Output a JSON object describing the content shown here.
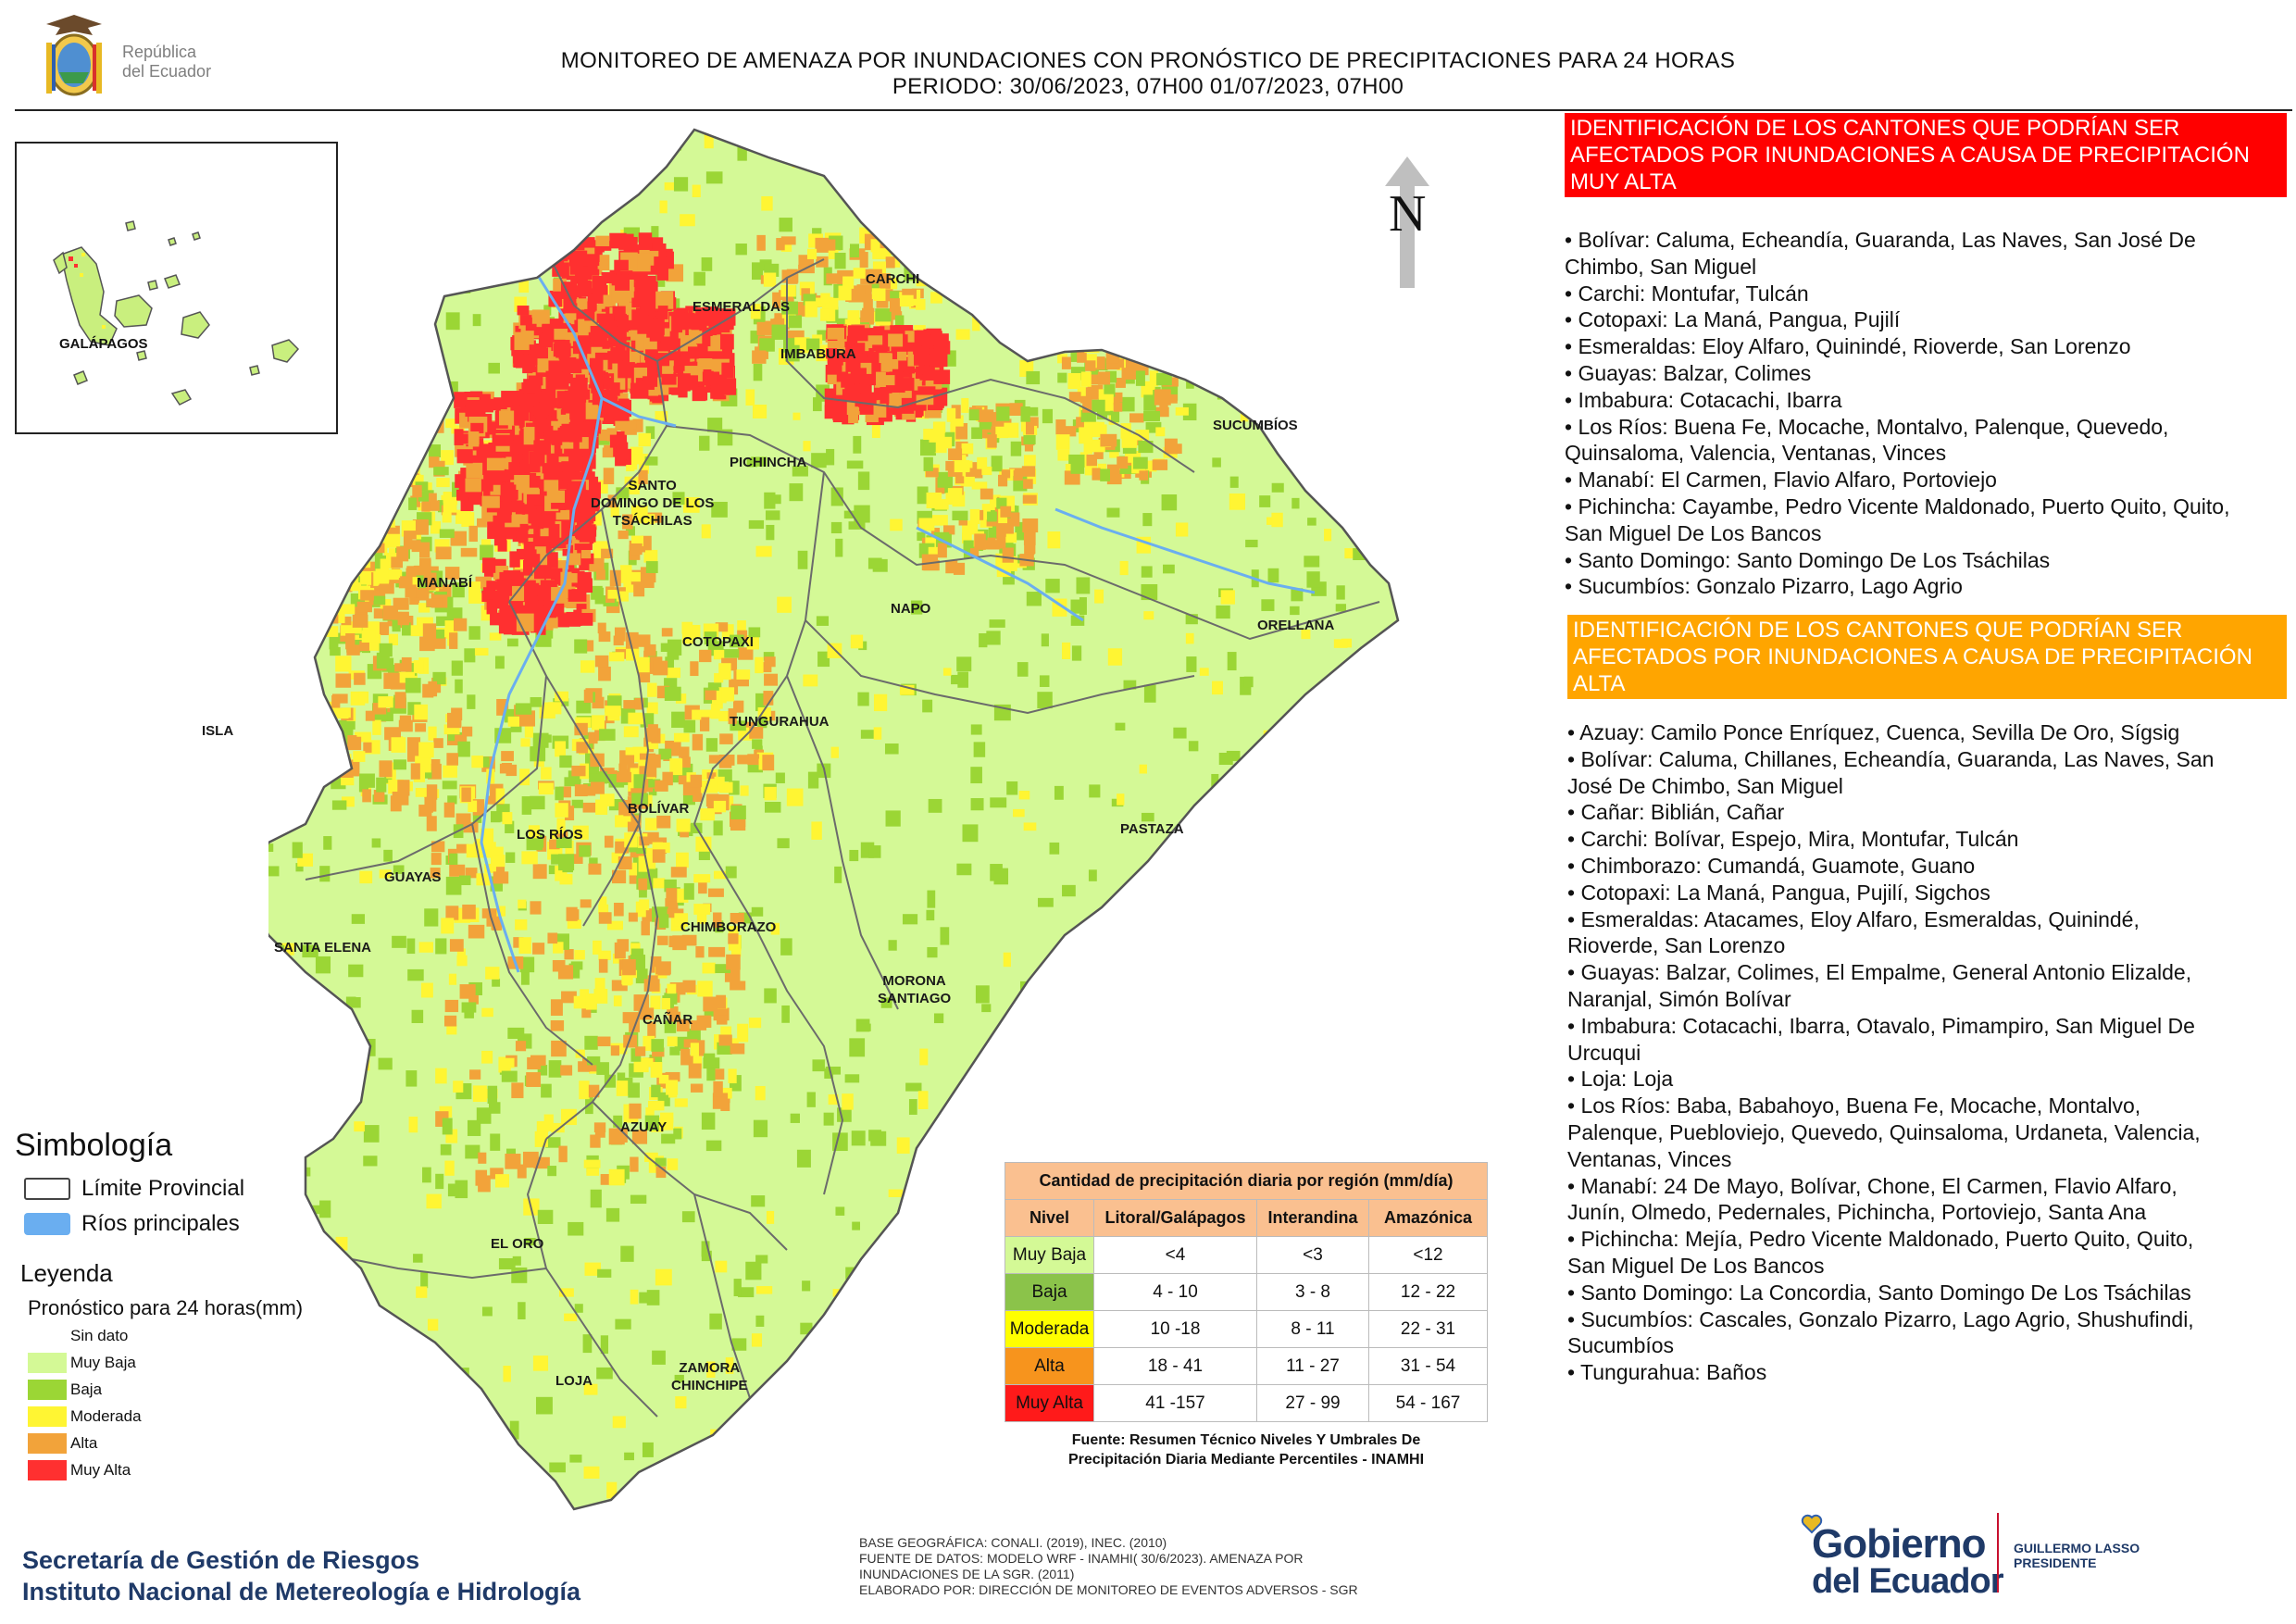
{
  "header": {
    "logo_text": [
      "República",
      "del Ecuador"
    ],
    "title_line1": "MONITOREO DE AMENAZA POR INUNDACIONES  CON PRONÓSTICO DE  PRECIPITACIONES PARA 24 HORAS",
    "title_line2": "PERIODO: 30/06/2023, 07H00 01/07/2023, 07H00"
  },
  "inset": {
    "label": "GALÁPAGOS"
  },
  "north_label": "N",
  "provinces": {
    "esmeraldas": "ESMERALDAS",
    "carchi": "CARCHI",
    "imbabura": "IMBABURA",
    "sucumbios": "SUCUMBÍOS",
    "pichincha": "PICHINCHA",
    "santo_domingo": [
      "SANTO",
      "DOMINGO DE LOS",
      "TSÁCHILAS"
    ],
    "manabi": "MANABÍ",
    "napo": "NAPO",
    "orellana": "ORELLANA",
    "cotopaxi": "COTOPAXI",
    "isla": "ISLA",
    "tungurahua": "TUNGURAHUA",
    "bolivar": "BOLÍVAR",
    "los_rios": "LOS RÍOS",
    "pastaza": "PASTAZA",
    "guayas": "GUAYAS",
    "chimborazo": "CHIMBORAZO",
    "santa_elena": "SANTA ELENA",
    "morona": [
      "MORONA",
      "SANTIAGO"
    ],
    "canar": "CAÑAR",
    "azuay": "AZUAY",
    "el_oro": "EL ORO",
    "loja": "LOJA",
    "zamora": [
      "ZAMORA",
      "CHINCHIPE"
    ]
  },
  "muy_alta": {
    "heading": [
      "IDENTIFICACIÓN DE LOS CANTONES QUE PODRÍAN SER",
      "AFECTADOS POR INUNDACIONES  A CAUSA DE PRECIPITACIÓN",
      "MUY ALTA"
    ],
    "lines": [
      "• Bolívar: Caluma, Echeandía, Guaranda, Las Naves, San José De",
      "Chimbo, San Miguel",
      "• Carchi: Montufar, Tulcán",
      "• Cotopaxi: La Maná, Pangua, Pujilí",
      "• Esmeraldas: Eloy Alfaro, Quinindé, Rioverde, San Lorenzo",
      "• Guayas: Balzar, Colimes",
      "• Imbabura: Cotacachi, Ibarra",
      "• Los Ríos: Buena Fe, Mocache, Montalvo, Palenque, Quevedo,",
      "Quinsaloma, Valencia, Ventanas, Vinces",
      "• Manabí: El Carmen, Flavio Alfaro, Portoviejo",
      "• Pichincha: Cayambe, Pedro Vicente Maldonado, Puerto Quito, Quito,",
      "San Miguel De Los Bancos",
      "• Santo Domingo: Santo Domingo De Los Tsáchilas",
      "• Sucumbíos: Gonzalo Pizarro, Lago Agrio"
    ]
  },
  "alta": {
    "heading": [
      "IDENTIFICACIÓN DE LOS CANTONES QUE  PODRÍAN SER",
      "AFECTADOS POR INUNDACIONES  A CAUSA DE PRECIPITACIÓN",
      "ALTA"
    ],
    "lines": [
      "• Azuay: Camilo Ponce Enríquez, Cuenca, Sevilla De Oro, Sígsig",
      "• Bolívar: Caluma, Chillanes, Echeandía, Guaranda, Las Naves, San",
      "José De Chimbo, San Miguel",
      "• Cañar: Biblián, Cañar",
      "• Carchi: Bolívar, Espejo, Mira, Montufar, Tulcán",
      "• Chimborazo: Cumandá, Guamote, Guano",
      "• Cotopaxi: La Maná, Pangua, Pujilí, Sigchos",
      "• Esmeraldas: Atacames, Eloy Alfaro, Esmeraldas, Quinindé,",
      "Rioverde, San Lorenzo",
      "• Guayas: Balzar, Colimes, El Empalme, General Antonio Elizalde,",
      "Naranjal, Simón Bolívar",
      "• Imbabura: Cotacachi, Ibarra, Otavalo, Pimampiro, San Miguel De",
      "Urcuqui",
      "• Loja: Loja",
      "• Los Ríos: Baba, Babahoyo, Buena Fe, Mocache, Montalvo,",
      "Palenque, Puebloviejo, Quevedo, Quinsaloma, Urdaneta, Valencia,",
      "Ventanas, Vinces",
      "• Manabí: 24 De Mayo, Bolívar, Chone, El Carmen, Flavio Alfaro,",
      "Junín, Olmedo, Pedernales, Pichincha, Portoviejo, Santa Ana",
      "• Pichincha: Mejía, Pedro Vicente Maldonado, Puerto Quito, Quito,",
      "San Miguel De Los Bancos",
      "• Santo Domingo: La Concordia, Santo Domingo De Los Tsáchilas",
      "• Sucumbíos: Cascales, Gonzalo Pizarro, Lago Agrio, Shushufindi,",
      "Sucumbíos",
      "• Tungurahua: Baños"
    ]
  },
  "simbologia": {
    "title": "Simbología",
    "items": [
      {
        "label": "Límite Provincial",
        "color": "#ffffff"
      },
      {
        "label": "Ríos principales",
        "color": "#6aaef0"
      }
    ]
  },
  "leyenda": {
    "title": "Leyenda",
    "subtitle": "Pronóstico para 24 horas(mm)",
    "items": [
      {
        "label": "Sin dato",
        "color": "#ffffff"
      },
      {
        "label": "Muy Baja",
        "color": "#d4f996"
      },
      {
        "label": "Baja",
        "color": "#9bd635"
      },
      {
        "label": "Moderada",
        "color": "#fff533"
      },
      {
        "label": "Alta",
        "color": "#f2a33a"
      },
      {
        "label": "Muy Alta",
        "color": "#ff3030"
      }
    ]
  },
  "table": {
    "title": "Cantidad de precipitación diaria por región (mm/día)",
    "headers": [
      "Nivel",
      "Litoral/Galápagos",
      "Interandina",
      "Amazónica"
    ],
    "rows": [
      {
        "nivel": "Muy Baja",
        "color": "#d4f996",
        "values": [
          "<4",
          "<3",
          "<12"
        ]
      },
      {
        "nivel": "Baja",
        "color": "#8bc34a",
        "values": [
          "4 - 10",
          "3 - 8",
          "12 - 22"
        ]
      },
      {
        "nivel": "Moderada",
        "color": "#ffff00",
        "values": [
          "10 -18",
          "8 - 11",
          "22 - 31"
        ]
      },
      {
        "nivel": "Alta",
        "color": "#f7941d",
        "values": [
          "18 - 41",
          "11 - 27",
          "31 - 54"
        ]
      },
      {
        "nivel": "Muy Alta",
        "color": "#ff1a1a",
        "values": [
          "41 -157",
          "27 - 99",
          "54 - 167"
        ]
      }
    ],
    "source": [
      "Fuente: Resumen Técnico Niveles Y Umbrales De",
      "Precipitación Diaria Mediante Percentiles - INAMHI"
    ]
  },
  "footer": {
    "sgr": [
      "Secretaría de Gestión de Riesgos",
      "Instituto Nacional de Metereología e Hidrología"
    ],
    "base": [
      "BASE GEOGRÁFICA: CONALI. (2019), INEC. (2010)",
      "FUENTE DE DATOS: MODELO WRF - INAMHI( 30/6/2023).  AMENAZA POR",
      "INUNDACIONES DE LA SGR. (2011)",
      "ELABORADO POR: DIRECCIÓN DE MONITOREO DE EVENTOS ADVERSOS - SGR"
    ],
    "gobierno": [
      "Gobierno",
      "del Ecuador"
    ],
    "president": [
      "GUILLERMO LASSO",
      "PRESIDENTE"
    ]
  }
}
